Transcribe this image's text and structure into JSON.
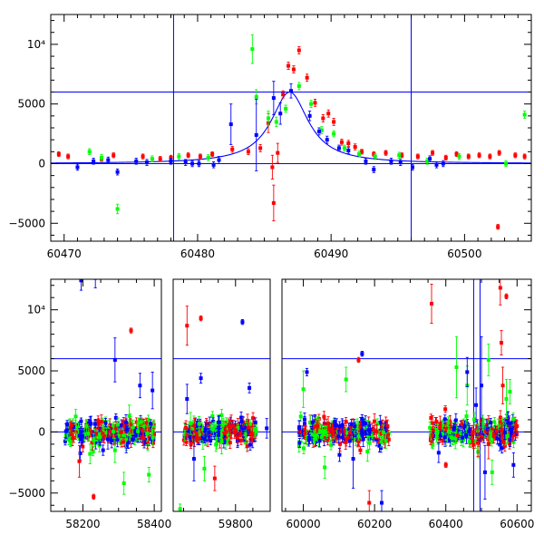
{
  "chart_data": [
    {
      "type": "scatter",
      "title": "",
      "xlabel": "",
      "ylabel": "",
      "xlim": [
        60469,
        60505
      ],
      "ylim": [
        -6500,
        12500
      ],
      "xticks": [
        60470,
        60480,
        60490,
        60500
      ],
      "yticks": [
        {
          "value": -5000,
          "label": "−5000"
        },
        {
          "value": 0,
          "label": "0"
        },
        {
          "value": 5000,
          "label": "5000"
        },
        {
          "value": 10000,
          "label": "10⁴"
        }
      ],
      "hlines": [
        0,
        6000
      ],
      "vlines": [
        60478.2,
        60496.0
      ],
      "model": {
        "type": "lorentzian",
        "peak_x": 60486.9,
        "amplitude": 6000,
        "half_width": 1.7,
        "baseline": 0
      },
      "series": [
        {
          "color": "#ff0000",
          "points": [
            [
              60469.6,
              800,
              200
            ],
            [
              60470.3,
              600,
              200
            ],
            [
              60472.8,
              400,
              200
            ],
            [
              60473.7,
              700,
              200
            ],
            [
              60475.9,
              600,
              200
            ],
            [
              60477.2,
              400,
              200
            ],
            [
              60478.0,
              500,
              200
            ],
            [
              60479.3,
              700,
              200
            ],
            [
              60480.2,
              600,
              200
            ],
            [
              60481.1,
              800,
              200
            ],
            [
              60482.6,
              1200,
              250
            ],
            [
              60483.8,
              1000,
              250
            ],
            [
              60484.7,
              1300,
              300
            ],
            [
              60485.3,
              3400,
              800
            ],
            [
              60485.6,
              -300,
              1000
            ],
            [
              60485.7,
              -3300,
              1500
            ],
            [
              60486.0,
              900,
              800
            ],
            [
              60486.4,
              5800,
              300
            ],
            [
              60486.8,
              8200,
              300
            ],
            [
              60487.2,
              7900,
              300
            ],
            [
              60487.6,
              9500,
              300
            ],
            [
              60488.2,
              7200,
              300
            ],
            [
              60488.8,
              5100,
              300
            ],
            [
              60489.4,
              3800,
              300
            ],
            [
              60489.8,
              4200,
              300
            ],
            [
              60490.2,
              3500,
              300
            ],
            [
              60490.8,
              1800,
              250
            ],
            [
              60491.3,
              1700,
              250
            ],
            [
              60491.8,
              1400,
              250
            ],
            [
              60492.3,
              1000,
              200
            ],
            [
              60493.2,
              800,
              200
            ],
            [
              60494.1,
              900,
              200
            ],
            [
              60495.3,
              700,
              200
            ],
            [
              60496.5,
              600,
              200
            ],
            [
              60497.6,
              900,
              200
            ],
            [
              60498.6,
              500,
              200
            ],
            [
              60499.4,
              800,
              200
            ],
            [
              60500.3,
              600,
              200
            ],
            [
              60501.1,
              700,
              200
            ],
            [
              60501.9,
              600,
              200
            ],
            [
              60502.6,
              900,
              200
            ],
            [
              60503.8,
              700,
              200
            ],
            [
              60504.5,
              600,
              200
            ],
            [
              60502.5,
              -5300,
              200
            ]
          ]
        },
        {
          "color": "#00ff00",
          "points": [
            [
              60471.9,
              1000,
              250
            ],
            [
              60472.8,
              500,
              250
            ],
            [
              60474.0,
              -3800,
              400
            ],
            [
              60476.6,
              400,
              250
            ],
            [
              60478.6,
              600,
              250
            ],
            [
              60480.8,
              500,
              250
            ],
            [
              60484.1,
              9600,
              1200
            ],
            [
              60484.4,
              5600,
              600
            ],
            [
              60485.3,
              3800,
              600
            ],
            [
              60485.9,
              3500,
              400
            ],
            [
              60486.6,
              4600,
              300
            ],
            [
              60487.6,
              6500,
              300
            ],
            [
              60488.5,
              5000,
              300
            ],
            [
              60489.3,
              2800,
              300
            ],
            [
              60490.2,
              2500,
              250
            ],
            [
              60491.0,
              1300,
              250
            ],
            [
              60492.1,
              800,
              250
            ],
            [
              60493.3,
              600,
              250
            ],
            [
              60495.1,
              700,
              250
            ],
            [
              60497.2,
              200,
              250
            ],
            [
              60499.6,
              600,
              250
            ],
            [
              60503.1,
              0,
              250
            ],
            [
              60504.5,
              4100,
              300
            ]
          ]
        },
        {
          "color": "#0000ff",
          "points": [
            [
              60471.0,
              -300,
              250
            ],
            [
              60472.2,
              200,
              250
            ],
            [
              60473.3,
              300,
              250
            ],
            [
              60474.0,
              -700,
              250
            ],
            [
              60475.4,
              200,
              250
            ],
            [
              60476.2,
              100,
              250
            ],
            [
              60478.0,
              200,
              250
            ],
            [
              60479.1,
              100,
              250
            ],
            [
              60479.6,
              0,
              250
            ],
            [
              60480.1,
              0,
              250
            ],
            [
              60481.2,
              -100,
              250
            ],
            [
              60481.6,
              300,
              300
            ],
            [
              60482.5,
              3300,
              1700
            ],
            [
              60484.4,
              2400,
              3000
            ],
            [
              60485.7,
              5500,
              1400
            ],
            [
              60486.2,
              4200,
              900
            ],
            [
              60487.0,
              6100,
              600
            ],
            [
              60488.4,
              4000,
              400
            ],
            [
              60489.1,
              2700,
              300
            ],
            [
              60489.7,
              2000,
              300
            ],
            [
              60490.6,
              1300,
              250
            ],
            [
              60491.3,
              1100,
              250
            ],
            [
              60492.6,
              200,
              250
            ],
            [
              60493.2,
              -500,
              250
            ],
            [
              60494.5,
              200,
              250
            ],
            [
              60495.2,
              100,
              250
            ],
            [
              60496.1,
              -300,
              250
            ],
            [
              60497.4,
              400,
              250
            ],
            [
              60497.9,
              -100,
              250
            ],
            [
              60498.4,
              0,
              250
            ]
          ]
        }
      ]
    },
    {
      "type": "scatter",
      "title": "",
      "xlabel": "",
      "ylabel": "",
      "ylim": [
        -6500,
        12500
      ],
      "broken_axis": true,
      "segments": [
        {
          "xlim": [
            58110,
            58420
          ],
          "xticks": [
            58200,
            58400
          ]
        },
        {
          "xlim": [
            59620,
            59900
          ],
          "xticks": [
            59800
          ]
        },
        {
          "xlim": [
            59940,
            60640
          ],
          "xticks": [
            60000,
            60200,
            60400,
            60600
          ]
        }
      ],
      "yticks": [
        {
          "value": -5000,
          "label": "−5000"
        },
        {
          "value": 0,
          "label": "0"
        },
        {
          "value": 5000,
          "label": "5000"
        },
        {
          "value": 10000,
          "label": "10⁴"
        }
      ],
      "hlines": [
        0,
        6000
      ],
      "vlines": [
        60478.2,
        60496.0
      ],
      "clusters": [
        {
          "x_start": 58150,
          "x_end": 58400,
          "scatter_sd": 500,
          "error_size": 450
        },
        {
          "x_start": 59650,
          "x_end": 59860,
          "scatter_sd": 500,
          "error_size": 450
        },
        {
          "x_start": 59985,
          "x_end": 60240,
          "scatter_sd": 500,
          "error_size": 450
        },
        {
          "x_start": 60355,
          "x_end": 60600,
          "scatter_sd": 500,
          "error_size": 450
        }
      ],
      "series": [
        {
          "color": "#ff0000",
          "points": [
            [
              58335,
              8300,
              200
            ],
            [
              59660,
              8700,
              1600
            ],
            [
              59700,
              9300,
              200
            ],
            [
              60155,
              5900,
              200
            ],
            [
              60360,
              10500,
              1600
            ],
            [
              60553,
              11800,
              1400
            ],
            [
              60556,
              7300,
              1000
            ],
            [
              60560,
              3800,
              1500
            ],
            [
              60570,
              11100,
              200
            ],
            [
              60160,
              -1500,
              300
            ],
            [
              60185,
              -5800,
              1000
            ],
            [
              60400,
              -2700,
              200
            ],
            [
              58190,
              -2400,
              1300
            ],
            [
              58230,
              -5300,
              200
            ],
            [
              59740,
              -3800,
              1000
            ],
            [
              60490,
              -900,
              1100
            ],
            [
              60520,
              -1000,
              1200
            ]
          ]
        },
        {
          "color": "#00ff00",
          "points": [
            [
              58165,
              -800,
              400
            ],
            [
              58220,
              -1800,
              800
            ],
            [
              58290,
              -1500,
              1000
            ],
            [
              58315,
              -4200,
              900
            ],
            [
              58330,
              1300,
              900
            ],
            [
              58385,
              -3500,
              600
            ],
            [
              59640,
              -6300,
              400
            ],
            [
              59670,
              700,
              900
            ],
            [
              59710,
              -3000,
              1000
            ],
            [
              59760,
              -800,
              1000
            ],
            [
              60000,
              3500,
              1500
            ],
            [
              60060,
              -2900,
              900
            ],
            [
              60120,
              4300,
              1000
            ],
            [
              60180,
              -1600,
              800
            ],
            [
              60430,
              5300,
              2500
            ],
            [
              60460,
              3800,
              1600
            ],
            [
              60520,
              5900,
              1300
            ],
            [
              60530,
              -3300,
              1000
            ],
            [
              60570,
              2700,
              1600
            ],
            [
              60580,
              3300,
              1000
            ]
          ]
        },
        {
          "color": "#0000ff",
          "points": [
            [
              58195,
              12400,
              800
            ],
            [
              58235,
              12600,
              800
            ],
            [
              58290,
              5900,
              1800
            ],
            [
              58360,
              3800,
              1000
            ],
            [
              58395,
              3400,
              1500
            ],
            [
              59660,
              2700,
              1200
            ],
            [
              59680,
              -2200,
              1800
            ],
            [
              59700,
              4400,
              400
            ],
            [
              59820,
              9000,
              200
            ],
            [
              59840,
              3600,
              400
            ],
            [
              60010,
              4900,
              300
            ],
            [
              60165,
              6400,
              200
            ],
            [
              60140,
              -2200,
              2400
            ],
            [
              60220,
              -5800,
              1000
            ],
            [
              60460,
              4900,
              1200
            ],
            [
              60485,
              2200,
              1400
            ],
            [
              60500,
              3800,
              4000
            ],
            [
              60510,
              -3300,
              2200
            ],
            [
              60590,
              -2700,
              1000
            ],
            [
              58270,
              -600,
              800
            ],
            [
              59890,
              300,
              800
            ],
            [
              60380,
              -1700,
              800
            ]
          ]
        }
      ]
    }
  ]
}
